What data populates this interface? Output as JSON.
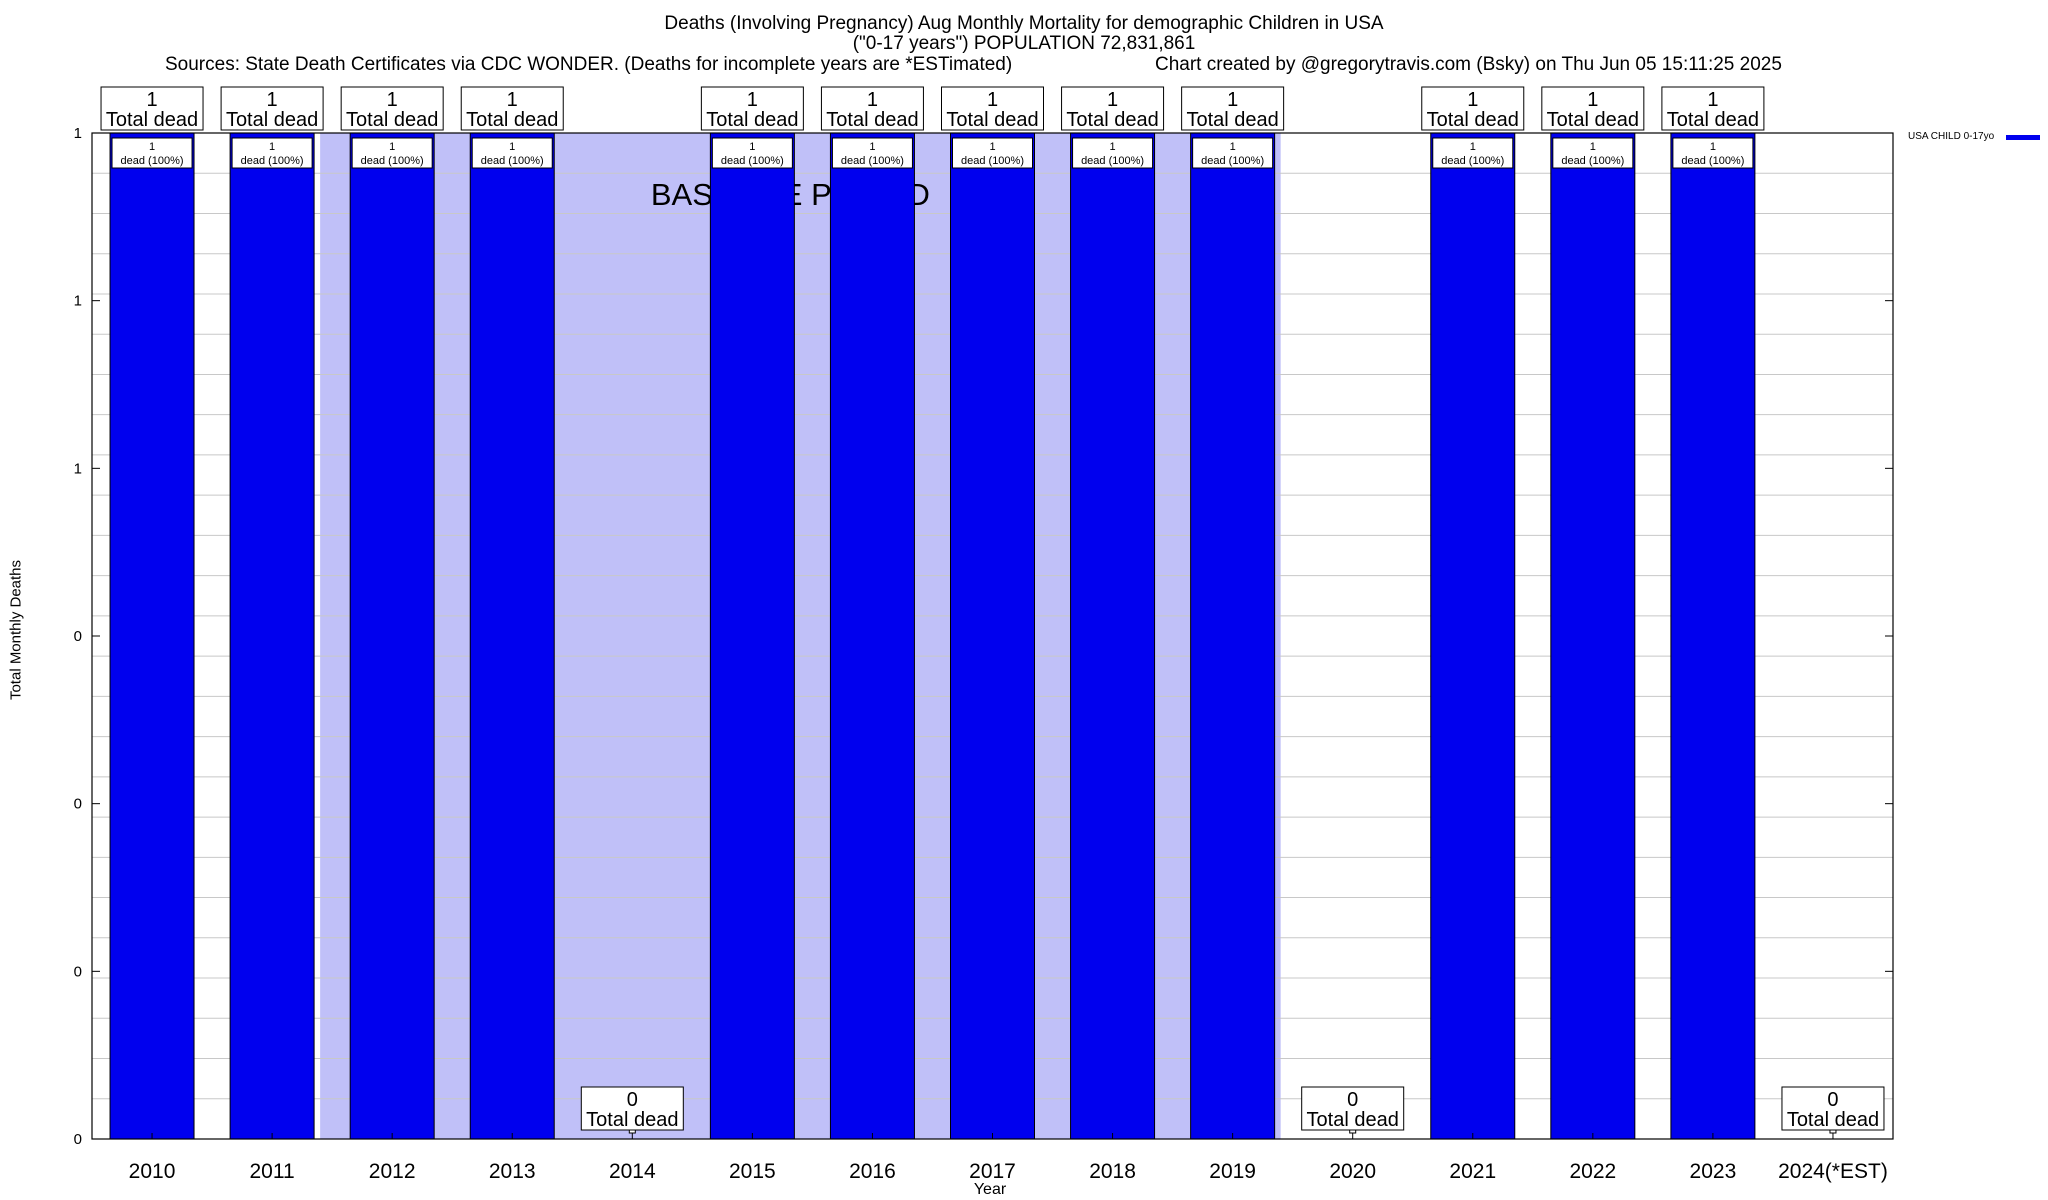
{
  "header": {
    "title": "Deaths (Involving Pregnancy) Aug Monthly Mortality for demographic Children in USA",
    "subtitle": "(\"0-17 years\") POPULATION 72,831,861",
    "sources": "Sources: State Death Certificates via CDC WONDER. (Deaths for incomplete years are *ESTimated)",
    "credit": "Chart created by @gregorytravis.com (Bsky) on Thu Jun 05 15:11:25 2025"
  },
  "chart_data": {
    "type": "bar",
    "categories": [
      "2010",
      "2011",
      "2012",
      "2013",
      "2014",
      "2015",
      "2016",
      "2017",
      "2018",
      "2019",
      "2020",
      "2021",
      "2022",
      "2023",
      "2024(*EST)"
    ],
    "series": [
      {
        "name": "USA CHILD 0-17yo",
        "color": "#0000ee",
        "values": [
          1,
          1,
          1,
          1,
          0,
          1,
          1,
          1,
          1,
          1,
          0,
          1,
          1,
          1,
          0
        ]
      }
    ],
    "total_labels": [
      "1",
      "1",
      "1",
      "1",
      "0",
      "1",
      "1",
      "1",
      "1",
      "1",
      "0",
      "1",
      "1",
      "1",
      "0"
    ],
    "total_suffix": "Total dead",
    "bar_labels": [
      "1",
      "1",
      "1",
      "1",
      "",
      "1",
      "1",
      "1",
      "1",
      "1",
      "",
      "1",
      "1",
      "1",
      ""
    ],
    "bar_label_suffix": "dead (100%)",
    "ytick_labels": [
      "0",
      "0",
      "0",
      "0",
      "1",
      "1",
      "1"
    ],
    "ylim": [
      0,
      1
    ],
    "xlabel": "Year",
    "ylabel": "Total Monthly Deaths",
    "baseline_label": "BASELINE PERIOD",
    "baseline_years": [
      "2012",
      "2019"
    ],
    "baseline_color": "#c0c0f8",
    "grid": true,
    "legend_position": "top-right outside"
  }
}
